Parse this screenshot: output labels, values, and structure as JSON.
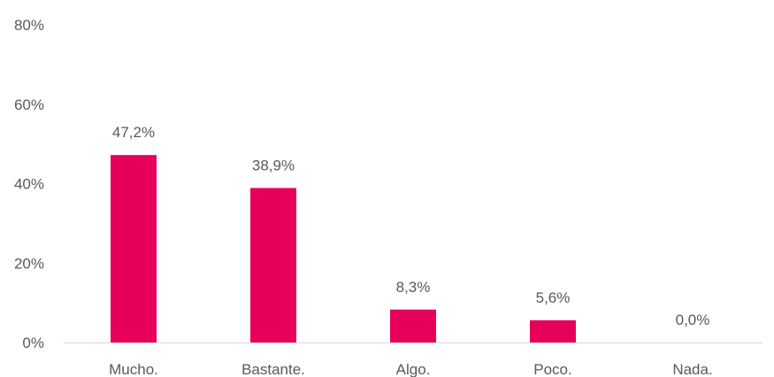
{
  "chart_data": {
    "type": "bar",
    "title": "",
    "xlabel": "",
    "ylabel": "",
    "categories": [
      "Mucho.",
      "Bastante.",
      "Algo.",
      "Poco.",
      "Nada."
    ],
    "values": [
      47.2,
      38.9,
      8.3,
      5.6,
      0.0
    ],
    "data_labels": [
      "47,2%",
      "38,9%",
      "8,3%",
      "5,6%",
      "0,0%"
    ],
    "ylim": [
      0,
      80
    ],
    "yticks": [
      0,
      20,
      40,
      60,
      80
    ],
    "ytick_labels": [
      "0%",
      "20%",
      "40%",
      "60%",
      "80%"
    ],
    "grid": false,
    "legend": "none",
    "colors": {
      "bar": "#E6005C",
      "axis": "#D9D9D9",
      "text": "#595959"
    }
  }
}
